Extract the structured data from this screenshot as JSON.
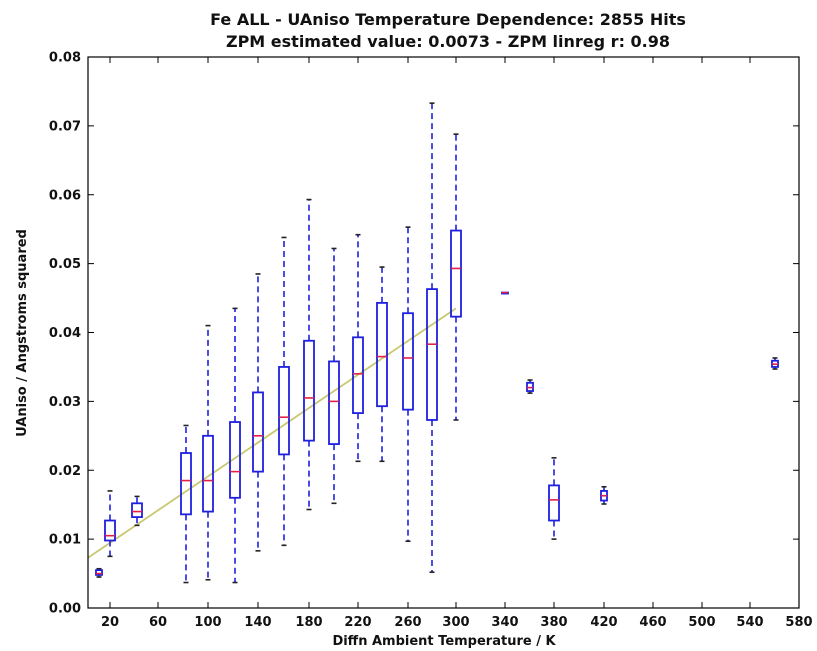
{
  "chart_data": {
    "type": "boxplot",
    "title": "Fe ALL - UAniso Temperature Dependence: 2855 Hits",
    "subtitle": "ZPM estimated value: 0.0073 - ZPM linreg r: 0.98",
    "xlabel": "Diffn Ambient Temperature / K",
    "ylabel": "UAniso / Angstroms squared",
    "ylim": [
      0.0,
      0.08
    ],
    "y_ticks": [
      "0.00",
      "0.01",
      "0.02",
      "0.03",
      "0.04",
      "0.05",
      "0.06",
      "0.07",
      "0.08"
    ],
    "x_tick_labels": [
      "20",
      "60",
      "100",
      "140",
      "180",
      "220",
      "260",
      "300",
      "340",
      "380",
      "420",
      "460",
      "500",
      "540",
      "580"
    ],
    "x_categories": [
      10,
      20,
      40,
      80,
      100,
      120,
      140,
      160,
      180,
      200,
      220,
      240,
      260,
      280,
      300,
      340,
      360,
      380,
      420,
      560
    ],
    "boxes": [
      {
        "x": 10,
        "whisker_low": 0.0045,
        "q1": 0.0048,
        "median": 0.005,
        "q3": 0.0055,
        "whisker_high": 0.0057
      },
      {
        "x": 20,
        "whisker_low": 0.0075,
        "q1": 0.0098,
        "median": 0.0105,
        "q3": 0.0127,
        "whisker_high": 0.017
      },
      {
        "x": 40,
        "whisker_low": 0.012,
        "q1": 0.0132,
        "median": 0.014,
        "q3": 0.0152,
        "whisker_high": 0.0162
      },
      {
        "x": 80,
        "whisker_low": 0.0037,
        "q1": 0.0136,
        "median": 0.0185,
        "q3": 0.0225,
        "whisker_high": 0.0265
      },
      {
        "x": 100,
        "whisker_low": 0.0041,
        "q1": 0.014,
        "median": 0.0185,
        "q3": 0.025,
        "whisker_high": 0.041
      },
      {
        "x": 120,
        "whisker_low": 0.0037,
        "q1": 0.016,
        "median": 0.0198,
        "q3": 0.027,
        "whisker_high": 0.0435
      },
      {
        "x": 140,
        "whisker_low": 0.0083,
        "q1": 0.0198,
        "median": 0.025,
        "q3": 0.0313,
        "whisker_high": 0.0485
      },
      {
        "x": 160,
        "whisker_low": 0.0091,
        "q1": 0.0223,
        "median": 0.0277,
        "q3": 0.035,
        "whisker_high": 0.0538
      },
      {
        "x": 180,
        "whisker_low": 0.0143,
        "q1": 0.0243,
        "median": 0.0305,
        "q3": 0.0388,
        "whisker_high": 0.0593
      },
      {
        "x": 200,
        "whisker_low": 0.0152,
        "q1": 0.0238,
        "median": 0.03,
        "q3": 0.0358,
        "whisker_high": 0.0522
      },
      {
        "x": 220,
        "whisker_low": 0.0213,
        "q1": 0.0283,
        "median": 0.034,
        "q3": 0.0393,
        "whisker_high": 0.0542
      },
      {
        "x": 240,
        "whisker_low": 0.0213,
        "q1": 0.0293,
        "median": 0.0365,
        "q3": 0.0443,
        "whisker_high": 0.0495
      },
      {
        "x": 260,
        "whisker_low": 0.0097,
        "q1": 0.0288,
        "median": 0.0363,
        "q3": 0.0428,
        "whisker_high": 0.0553
      },
      {
        "x": 280,
        "whisker_low": 0.0052,
        "q1": 0.0273,
        "median": 0.0383,
        "q3": 0.0463,
        "whisker_high": 0.0733
      },
      {
        "x": 300,
        "whisker_low": 0.0273,
        "q1": 0.0423,
        "median": 0.0493,
        "q3": 0.0548,
        "whisker_high": 0.0688
      },
      {
        "x": 340,
        "whisker_low": 0.0458,
        "q1": 0.0458,
        "median": 0.0458,
        "q3": 0.0458,
        "whisker_high": 0.0458
      },
      {
        "x": 360,
        "whisker_low": 0.0312,
        "q1": 0.0315,
        "median": 0.032,
        "q3": 0.0327,
        "whisker_high": 0.0331
      },
      {
        "x": 380,
        "whisker_low": 0.01,
        "q1": 0.0127,
        "median": 0.0157,
        "q3": 0.0178,
        "whisker_high": 0.0218
      },
      {
        "x": 420,
        "whisker_low": 0.0151,
        "q1": 0.0156,
        "median": 0.0163,
        "q3": 0.017,
        "whisker_high": 0.0176
      },
      {
        "x": 560,
        "whisker_low": 0.0347,
        "q1": 0.035,
        "median": 0.0354,
        "q3": 0.0359,
        "whisker_high": 0.0363
      }
    ],
    "fit_line": {
      "x": [
        0,
        300
      ],
      "y": [
        0.0073,
        0.0435
      ]
    },
    "colors": {
      "box": "#1f1fdf",
      "median": "#e0204a",
      "fit": "#c8c870",
      "cap": "#222222"
    },
    "grid": false
  }
}
